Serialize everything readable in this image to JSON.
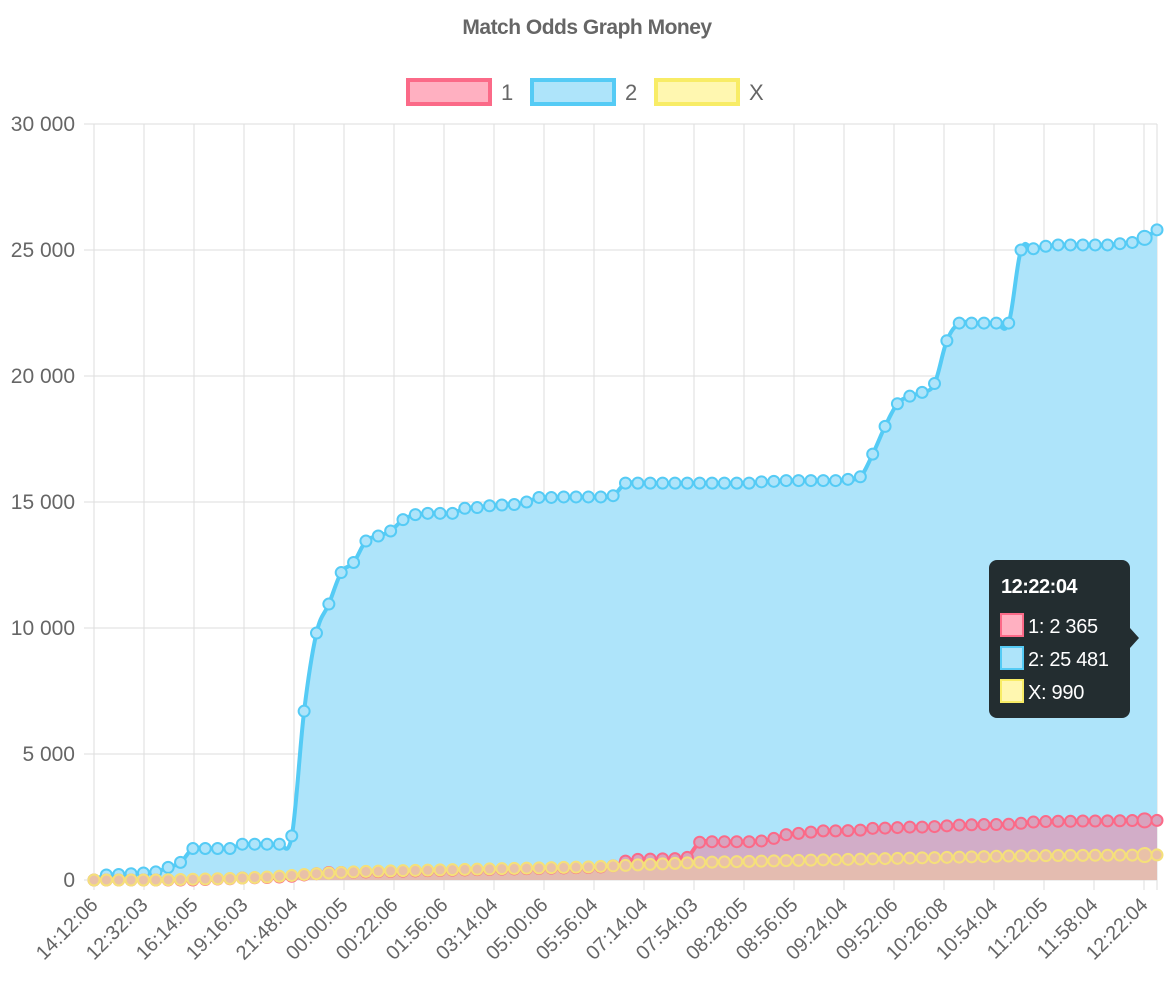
{
  "chart_data": {
    "type": "area",
    "title": "Match Odds Graph Money",
    "legend_position": "top",
    "grid": true,
    "ylim": [
      0,
      30000
    ],
    "yticks": [
      0,
      5000,
      10000,
      15000,
      20000,
      25000,
      30000
    ],
    "ytick_labels": [
      "0",
      "5 000",
      "10 000",
      "15 000",
      "20 000",
      "25 000",
      "30 000"
    ],
    "xtick_labels": [
      "14:12:06",
      "12:32:03",
      "16:14:05",
      "19:16:03",
      "21:48:04",
      "00:00:05",
      "00:22:06",
      "01:56:06",
      "03:14:04",
      "05:00:06",
      "05:56:04",
      "07:14:04",
      "07:54:03",
      "08:28:05",
      "08:56:05",
      "09:24:04",
      "09:52:06",
      "10:26:08",
      "10:54:04",
      "11:22:05",
      "11:58:04",
      "12:22:04"
    ],
    "series": [
      {
        "name": "2",
        "color": "#36a2eb",
        "line_color": "#55cbf5",
        "fill_color": "#aee4fa",
        "values": [
          0,
          200,
          220,
          250,
          280,
          320,
          500,
          700,
          1250,
          1250,
          1250,
          1250,
          1420,
          1420,
          1420,
          1420,
          1750,
          6700,
          9800,
          10950,
          12200,
          12600,
          13450,
          13650,
          13850,
          14300,
          14500,
          14550,
          14550,
          14550,
          14750,
          14780,
          14850,
          14880,
          14900,
          15000,
          15180,
          15180,
          15200,
          15200,
          15200,
          15200,
          15250,
          15750,
          15750,
          15750,
          15750,
          15750,
          15750,
          15750,
          15750,
          15750,
          15750,
          15750,
          15800,
          15820,
          15850,
          15850,
          15850,
          15850,
          15850,
          15900,
          16000,
          16900,
          18000,
          18900,
          19200,
          19350,
          19700,
          21400,
          22100,
          22100,
          22100,
          22100,
          22100,
          25000,
          25050,
          25150,
          25200,
          25200,
          25200,
          25200,
          25200,
          25250,
          25300,
          25481,
          25800
        ]
      },
      {
        "name": "1",
        "color": "#ff6384",
        "line_color": "#fb6a88",
        "fill_color": "#d8a3be",
        "values": [
          0,
          0,
          0,
          0,
          0,
          0,
          0,
          0,
          0,
          20,
          40,
          50,
          80,
          90,
          100,
          120,
          150,
          200,
          250,
          300,
          300,
          310,
          320,
          330,
          340,
          350,
          360,
          370,
          380,
          390,
          400,
          410,
          420,
          430,
          440,
          450,
          460,
          470,
          480,
          490,
          500,
          520,
          560,
          750,
          820,
          830,
          840,
          850,
          900,
          1500,
          1520,
          1520,
          1520,
          1520,
          1550,
          1650,
          1800,
          1850,
          1900,
          1950,
          1950,
          1960,
          1980,
          2050,
          2060,
          2080,
          2100,
          2100,
          2120,
          2150,
          2180,
          2190,
          2200,
          2200,
          2210,
          2250,
          2300,
          2320,
          2330,
          2330,
          2340,
          2340,
          2345,
          2350,
          2360,
          2365,
          2365
        ]
      },
      {
        "name": "X",
        "color": "#ffee55",
        "line_color": "#f5e07a",
        "fill_color": "#e9c1a8",
        "values": [
          0,
          0,
          0,
          0,
          0,
          0,
          10,
          20,
          30,
          40,
          50,
          60,
          80,
          100,
          120,
          150,
          180,
          220,
          250,
          280,
          300,
          320,
          340,
          350,
          360,
          370,
          380,
          390,
          400,
          410,
          420,
          430,
          440,
          450,
          460,
          470,
          480,
          490,
          500,
          510,
          520,
          540,
          560,
          580,
          600,
          620,
          640,
          660,
          680,
          700,
          710,
          720,
          730,
          740,
          750,
          760,
          770,
          780,
          790,
          800,
          810,
          820,
          830,
          840,
          850,
          860,
          870,
          880,
          890,
          900,
          910,
          920,
          930,
          940,
          950,
          955,
          960,
          965,
          970,
          975,
          978,
          980,
          983,
          985,
          988,
          990,
          995
        ]
      }
    ],
    "tooltip": {
      "title": "12:22:04",
      "lines": [
        {
          "series": "1",
          "text": "1: 2 365"
        },
        {
          "series": "2",
          "text": "2: 25 481"
        },
        {
          "series": "X",
          "text": "X: 990"
        }
      ]
    }
  }
}
